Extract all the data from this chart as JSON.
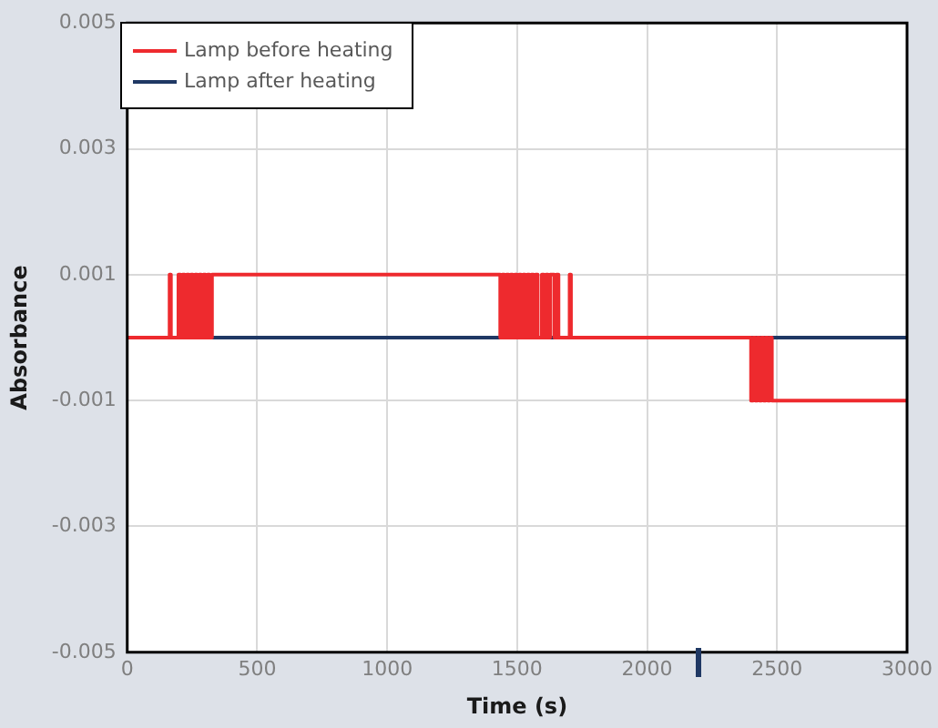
{
  "chart_data": {
    "type": "step",
    "xlabel": "Time (s)",
    "ylabel": "Absorbance",
    "xlim": [
      0,
      3000
    ],
    "xticks": [
      0,
      500,
      1000,
      1500,
      2000,
      2500,
      3000
    ],
    "ylim": [
      -0.005,
      0.005
    ],
    "yticks": [
      -0.005,
      -0.003,
      -0.001,
      0.001,
      0.003,
      0.005
    ],
    "grid": true,
    "legend": "top left",
    "series": [
      {
        "name": "Lamp before heating",
        "color": "#ee2a2e",
        "x": [
          0,
          163,
          168,
          197,
          205,
          213,
          221,
          229,
          237,
          245,
          253,
          261,
          269,
          277,
          285,
          293,
          301,
          309,
          317,
          326,
          1435,
          1443,
          1451,
          1459,
          1467,
          1475,
          1483,
          1491,
          1499,
          1507,
          1515,
          1523,
          1531,
          1539,
          1547,
          1555,
          1563,
          1571,
          1579,
          1595,
          1603,
          1611,
          1619,
          1627,
          1635,
          1643,
          1651,
          1659,
          1702,
          1707,
          2400,
          2408,
          2416,
          2424,
          2432,
          2440,
          2448,
          2456,
          2464,
          2472,
          2480,
          3000
        ],
        "values": [
          0,
          0.001,
          0,
          0.001,
          0,
          0.001,
          0,
          0.001,
          0,
          0.001,
          0,
          0.001,
          0,
          0.001,
          0,
          0.001,
          0,
          0.001,
          0,
          0.001,
          0,
          0.001,
          0,
          0.001,
          0,
          0.001,
          0,
          0.001,
          0,
          0.001,
          0,
          0.001,
          0,
          0.001,
          0,
          0.001,
          0,
          0.001,
          0,
          0.001,
          0,
          0.001,
          0,
          0.001,
          0.001,
          0,
          0.001,
          0,
          0.001,
          0,
          -0.001,
          0,
          -0.001,
          0,
          -0.001,
          0,
          -0.001,
          0,
          -0.001,
          0,
          -0.001,
          -0.001
        ]
      },
      {
        "name": "Lamp after heating",
        "color": "#1f3864",
        "type": "line",
        "x": [
          0,
          3000
        ],
        "values": [
          0,
          0
        ]
      }
    ]
  }
}
